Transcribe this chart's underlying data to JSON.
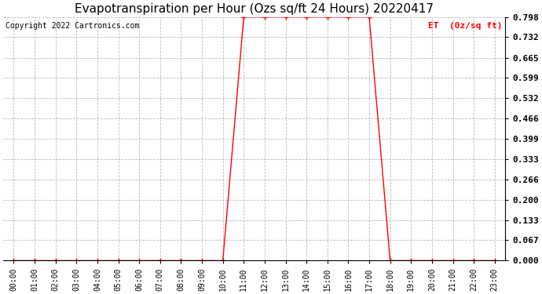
{
  "title": "Evapotranspiration per Hour (Ozs sq/ft 24 Hours) 20220417",
  "copyright_text": "Copyright 2022 Cartronics.com",
  "legend_label": "ET  (0z/sq ft)",
  "background_color": "#ffffff",
  "line_color": "#ff0000",
  "grid_color": "#bbbbbb",
  "title_color": "#000000",
  "copyright_color": "#000000",
  "legend_color": "#ff0000",
  "hours": [
    0,
    1,
    2,
    3,
    4,
    5,
    6,
    7,
    8,
    9,
    10,
    11,
    12,
    13,
    14,
    15,
    16,
    17,
    18,
    19,
    20,
    21,
    22,
    23
  ],
  "values": [
    0.0,
    0.0,
    0.0,
    0.0,
    0.0,
    0.0,
    0.0,
    0.0,
    0.0,
    0.0,
    0.0,
    0.798,
    0.798,
    0.798,
    0.798,
    0.798,
    0.798,
    0.798,
    0.0,
    0.0,
    0.0,
    0.0,
    0.0,
    0.0
  ],
  "ylim": [
    0.0,
    0.798
  ],
  "yticks": [
    0.0,
    0.067,
    0.133,
    0.2,
    0.266,
    0.333,
    0.399,
    0.466,
    0.532,
    0.599,
    0.665,
    0.732,
    0.798
  ],
  "marker": "+",
  "marker_size": 4,
  "line_width": 1.0,
  "title_fontsize": 11,
  "tick_fontsize": 7,
  "copyright_fontsize": 7,
  "legend_fontsize": 8,
  "ytick_fontsize": 8
}
